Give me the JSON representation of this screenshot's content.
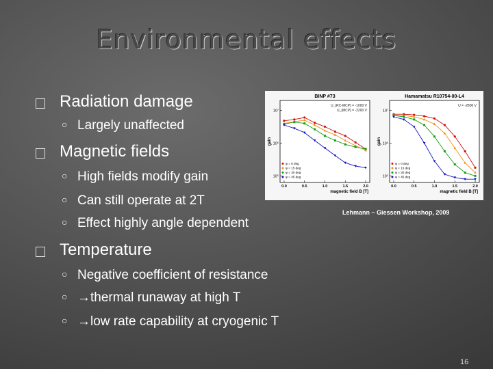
{
  "slide": {
    "title": "Environmental effects",
    "page_number": "16",
    "bullets": [
      {
        "text": "Radiation damage",
        "subs": [
          "Largely unaffected"
        ]
      },
      {
        "text": "Magnetic fields",
        "subs": [
          "High fields modify gain",
          "Can still operate at 2T",
          "Effect highly angle dependent"
        ]
      },
      {
        "text": "Temperature",
        "subs": [
          "Negative coefficient of resistance",
          "→thermal runaway at high T",
          "→low rate capability at cryogenic T"
        ]
      }
    ],
    "caption": "Lehmann – Giessen Workshop, 2009"
  },
  "chart_data": [
    {
      "type": "line",
      "title": "BINP #73",
      "annotation": [
        "U_{RC-MCP} = -1000 V",
        "U_{MCP} = -2200 V"
      ],
      "xlabel": "magnetic field B  [T]",
      "ylabel": "gain",
      "x_ticks": [
        "0.0",
        "0.5",
        "1.0",
        "1.5",
        "2.0"
      ],
      "y_ticks": [
        "10⁷",
        "10⁶",
        "10⁵"
      ],
      "ylim_log10": [
        4.8,
        7.3
      ],
      "xlim": [
        -0.1,
        2.1
      ],
      "x": [
        0,
        0.25,
        0.5,
        0.75,
        1.0,
        1.25,
        1.5,
        1.75,
        2.0
      ],
      "series": [
        {
          "name": "φ = 0 deg",
          "color": "#d01010",
          "values": [
            6.68,
            6.72,
            6.78,
            6.62,
            6.5,
            6.35,
            6.22,
            6.02,
            5.82
          ]
        },
        {
          "name": "φ = 15 deg",
          "color": "#f09010",
          "values": [
            6.6,
            6.65,
            6.7,
            6.55,
            6.38,
            6.25,
            6.08,
            5.92,
            5.78
          ]
        },
        {
          "name": "φ = 30 deg",
          "color": "#10a010",
          "values": [
            6.58,
            6.64,
            6.6,
            6.42,
            6.22,
            6.08,
            5.96,
            5.88,
            5.82
          ]
        },
        {
          "name": "φ = 45 deg",
          "color": "#1010c0",
          "values": [
            6.55,
            6.45,
            6.32,
            6.08,
            5.85,
            5.62,
            5.4,
            5.3,
            5.25
          ]
        }
      ],
      "legend": "bottom-left"
    },
    {
      "type": "line",
      "title": "Hamamatsu R10754-00-L4",
      "annotation": [
        "U = -2800 V"
      ],
      "xlabel": "magnetic field B  [T]",
      "ylabel": "gain",
      "x_ticks": [
        "0.0",
        "0.5",
        "1.0",
        "1.5",
        "2.0"
      ],
      "y_ticks": [
        "10⁷",
        "10⁶",
        "10⁵"
      ],
      "ylim_log10": [
        4.8,
        7.3
      ],
      "xlim": [
        -0.1,
        2.1
      ],
      "x": [
        0,
        0.25,
        0.5,
        0.75,
        1.0,
        1.25,
        1.5,
        1.75,
        2.0
      ],
      "series": [
        {
          "name": "φ = 0 deg",
          "color": "#d01010",
          "values": [
            6.88,
            6.88,
            6.86,
            6.82,
            6.75,
            6.55,
            6.2,
            5.75,
            5.25
          ]
        },
        {
          "name": "φ = 15 deg",
          "color": "#f09010",
          "values": [
            6.86,
            6.84,
            6.8,
            6.72,
            6.58,
            6.3,
            5.85,
            5.4,
            5.1
          ]
        },
        {
          "name": "φ = 30 deg",
          "color": "#10a010",
          "values": [
            6.84,
            6.8,
            6.72,
            6.55,
            6.2,
            5.75,
            5.35,
            5.1,
            5.0
          ]
        },
        {
          "name": "φ = 45 deg",
          "color": "#1010c0",
          "values": [
            6.8,
            6.72,
            6.5,
            6.0,
            5.45,
            5.05,
            4.95,
            4.9,
            4.9
          ]
        }
      ],
      "legend": "bottom-left"
    }
  ]
}
